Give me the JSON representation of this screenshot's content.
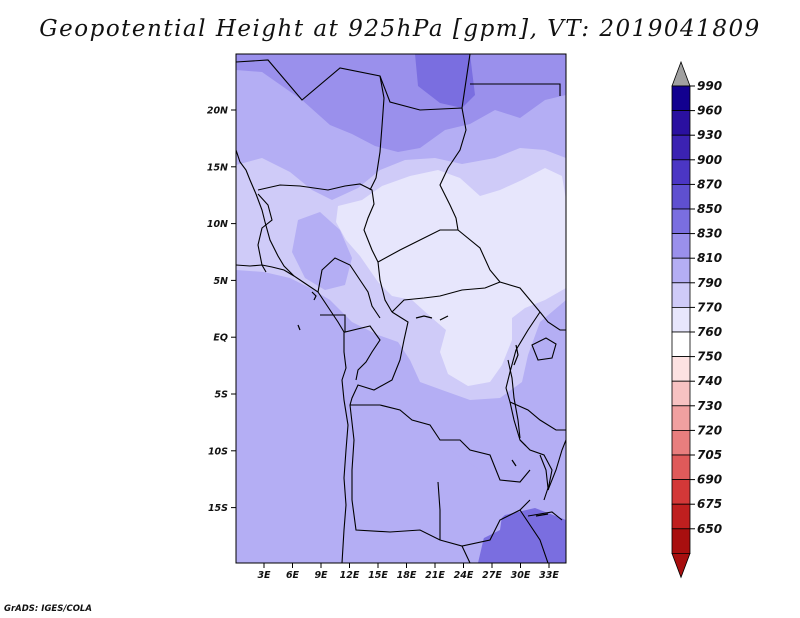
{
  "title": "Geopotential Height at 925hPa [gpm], VT: 2019041809",
  "credit": "GrADS: IGES/COLA",
  "axes": {
    "lat_labels": [
      "20N",
      "15N",
      "10N",
      "5N",
      "EQ",
      "5S",
      "10S",
      "15S"
    ],
    "lon_labels": [
      "3E",
      "6E",
      "9E",
      "12E",
      "15E",
      "18E",
      "21E",
      "24E",
      "27E",
      "30E",
      "33E"
    ]
  },
  "colorbar": {
    "levels": [
      "990",
      "960",
      "930",
      "900",
      "870",
      "850",
      "830",
      "810",
      "790",
      "770",
      "760",
      "750",
      "740",
      "730",
      "720",
      "705",
      "690",
      "675",
      "650"
    ],
    "colors": [
      "#12008f",
      "#2a10a0",
      "#3b22b2",
      "#4b36c4",
      "#5f50d0",
      "#7a6ee0",
      "#9a90ec",
      "#b4aef4",
      "#cfcbf8",
      "#e7e6fc",
      "#ffffff",
      "#fde2e2",
      "#f7c2c2",
      "#f0a0a0",
      "#e87e7e",
      "#df5a5a",
      "#d33838",
      "#bf1f1f",
      "#a80f0f"
    ],
    "top_arrow_color": "#a0a0a0",
    "bottom_arrow_color": "#a80f0f"
  }
}
